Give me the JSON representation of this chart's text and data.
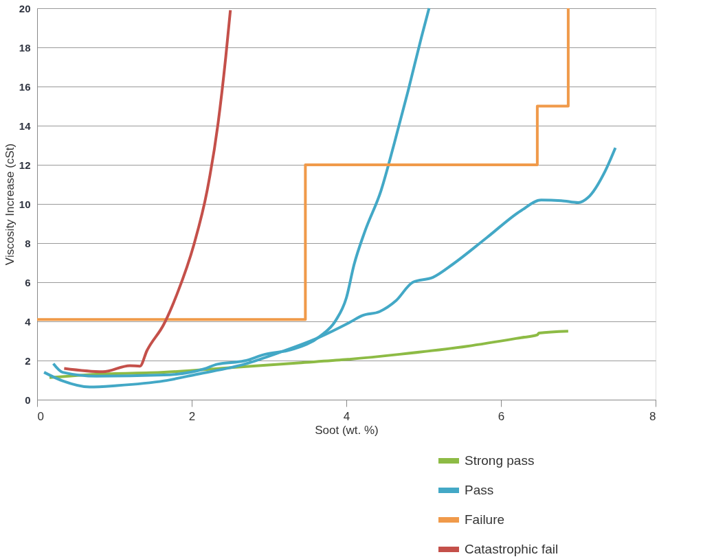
{
  "chart_data": {
    "type": "line",
    "xlabel": "Soot (wt. %)",
    "ylabel": "Viscosity Increase (cSt)",
    "xlim": [
      0,
      8
    ],
    "xticks": [
      0,
      2,
      4,
      6,
      8
    ],
    "ylim": [
      0,
      20
    ],
    "yticks": [
      0,
      2,
      4,
      6,
      8,
      10,
      12,
      14,
      16,
      18,
      20
    ],
    "grid": "y",
    "legend": "bottom right",
    "marker": "none",
    "line_style": "solid",
    "series": [
      {
        "name": "Strong pass",
        "color": "#8dbb45",
        "x": [
          0.16,
          0.77,
          1.64,
          2.51,
          3.38,
          3.99,
          4.69,
          5.56,
          6.26,
          6.47,
          6.49,
          6.87
        ],
        "values": [
          1.13,
          1.3,
          1.4,
          1.64,
          1.88,
          2.05,
          2.32,
          2.73,
          3.17,
          3.31,
          3.4,
          3.5
        ]
      },
      {
        "name": "Pass",
        "color": "#43a8c6",
        "x": [
          0.21,
          0.33,
          0.77,
          1.64,
          2.16,
          2.33,
          2.68,
          2.95,
          3.29,
          3.66,
          3.86,
          4.0,
          4.1,
          4.24,
          4.45,
          4.62,
          4.8,
          4.97,
          5.07
        ],
        "values": [
          1.84,
          1.4,
          1.2,
          1.26,
          1.57,
          1.81,
          1.98,
          2.32,
          2.56,
          3.24,
          4.03,
          5.2,
          6.9,
          8.6,
          10.7,
          13.1,
          15.8,
          18.5,
          20
        ]
      },
      {
        "color": "#43a8c6",
        "x": [
          0.09,
          0.33,
          0.68,
          1.03,
          1.64,
          2.07,
          2.68,
          3.12,
          3.64,
          4.03,
          4.21,
          4.43,
          4.64,
          4.86,
          5.12,
          5.38,
          5.82,
          6.26,
          6.52,
          6.78,
          7.0,
          7.13,
          7.35,
          7.48
        ],
        "values": [
          1.4,
          0.96,
          0.65,
          0.72,
          0.96,
          1.3,
          1.81,
          2.39,
          3.17,
          3.92,
          4.3,
          4.5,
          5.05,
          6.0,
          6.25,
          6.93,
          8.29,
          9.66,
          10.2,
          10.17,
          10.07,
          10.34,
          11.7,
          12.87
        ]
      },
      {
        "name": "Failure",
        "color": "#f09a4a",
        "type": "step",
        "x": [
          0,
          3.47,
          6.47,
          6.87
        ],
        "values": [
          4.1,
          12,
          15,
          20
        ]
      },
      {
        "name": "Catastrophic fail",
        "color": "#c4504a",
        "x": [
          0.35,
          0.85,
          1.2,
          1.33,
          1.42,
          1.64,
          1.81,
          2.03,
          2.2,
          2.34,
          2.44,
          2.5
        ],
        "values": [
          1.6,
          1.43,
          1.74,
          1.71,
          2.5,
          3.86,
          5.4,
          7.95,
          10.7,
          14.1,
          17.5,
          19.9
        ]
      }
    ]
  }
}
